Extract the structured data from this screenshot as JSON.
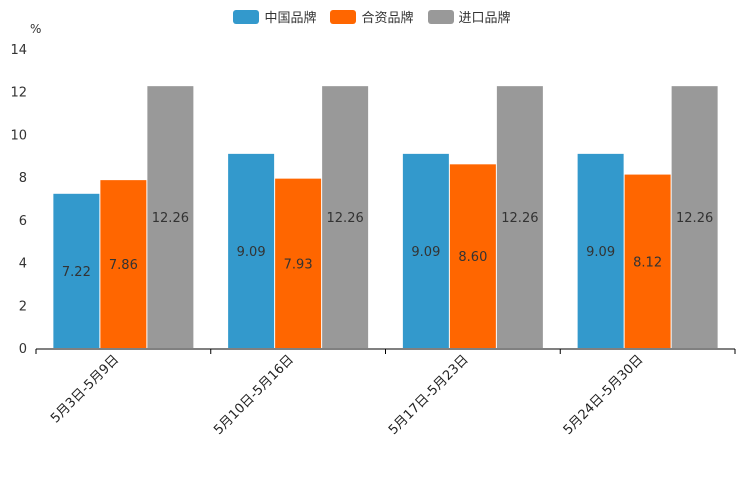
{
  "chart_data": {
    "type": "bar",
    "unit": "%",
    "categories": [
      "5月3日-5月9日",
      "5月10日-5月16日",
      "5月17日-5月23日",
      "5月24日-5月30日"
    ],
    "series": [
      {
        "name": "中国品牌",
        "color": "#3399cc",
        "values": [
          7.22,
          9.09,
          9.09,
          9.09
        ]
      },
      {
        "name": "合资品牌",
        "color": "#ff6600",
        "values": [
          7.86,
          7.93,
          8.6,
          8.12
        ]
      },
      {
        "name": "进口品牌",
        "color": "#999999",
        "values": [
          12.26,
          12.26,
          12.26,
          12.26
        ]
      }
    ],
    "ylim": [
      0,
      14
    ],
    "yticks": [
      0,
      2,
      4,
      6,
      8,
      10,
      12,
      14
    ],
    "legend_position": "top-center"
  }
}
